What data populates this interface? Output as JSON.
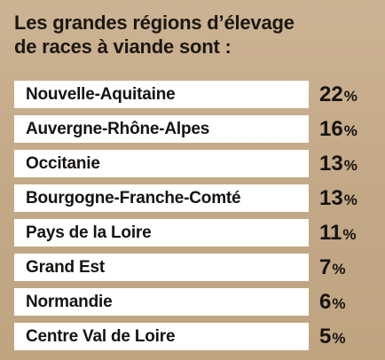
{
  "title_line1": "Les grandes régions d’élevage",
  "title_line2": "de races à viande sont :",
  "chart_data": {
    "type": "table",
    "title": "Les grandes régions d’élevage de races à viande sont :",
    "unit": "%",
    "categories": [
      "Nouvelle-Aquitaine",
      "Auvergne-Rhône-Alpes",
      "Occitanie",
      "Bourgogne-Franche-Comté",
      "Pays de la Loire",
      "Grand Est",
      "Normandie",
      "Centre Val de Loire"
    ],
    "values": [
      22,
      16,
      13,
      13,
      11,
      7,
      6,
      5
    ]
  },
  "colors": {
    "background": "#c7ac8b",
    "row_fill": "#ffffff",
    "text": "#161310"
  }
}
